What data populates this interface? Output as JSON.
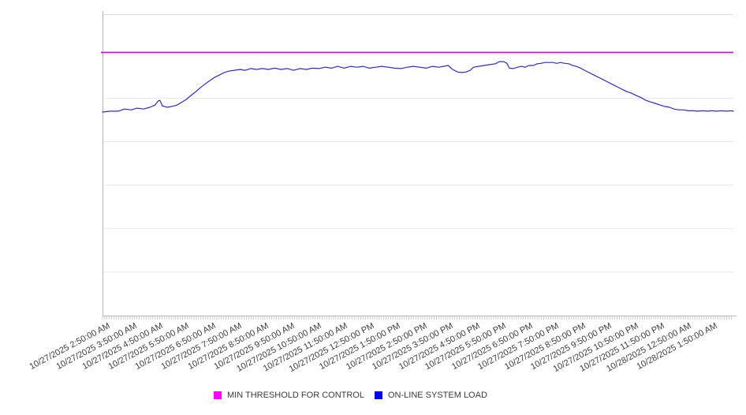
{
  "chart_data": {
    "type": "line",
    "title": "",
    "x_axis": {
      "tick_labels": [
        "10/27/2025 2:50:00 AM",
        "10/27/2025 3:50:00 AM",
        "10/27/2025 4:50:00 AM",
        "10/27/2025 5:50:00 AM",
        "10/27/2025 6:50:00 AM",
        "10/27/2025 7:50:00 AM",
        "10/27/2025 8:50:00 AM",
        "10/27/2025 9:50:00 AM",
        "10/27/2025 10:50:00 AM",
        "10/27/2025 11:50:00 AM",
        "10/27/2025 12:50:00 PM",
        "10/27/2025 1:50:00 PM",
        "10/27/2025 2:50:00 PM",
        "10/27/2025 3:50:00 PM",
        "10/27/2025 4:50:00 PM",
        "10/27/2025 5:50:00 PM",
        "10/27/2025 6:50:00 PM",
        "10/27/2025 7:50:00 PM",
        "10/27/2025 8:50:00 PM",
        "10/27/2025 9:50:00 PM",
        "10/27/2025 10:50:00 PM",
        "10/27/2025 11:50:00 PM",
        "10/28/2025 12:50:00 AM",
        "10/28/2025 1:50:00 AM"
      ],
      "label_rotation_deg": -28,
      "minor_ticks": "dense per-sample tick marks along the axis line"
    },
    "y_axis": {
      "tick_labels": [],
      "units": "unlabeled; values expressed in horizontal-gridline divisions above the x-axis",
      "grid": "horizontal gridlines only"
    },
    "ylim": [
      0,
      6.93
    ],
    "legend_position": "bottom-center",
    "series": [
      {
        "name": "MIN THRESHOLD FOR CONTROL",
        "type": "threshold-horizontal-line",
        "color": "#c716c7",
        "legend_swatch_color": "#ff00ff",
        "value": 6.05
      },
      {
        "name": "ON-LINE SYSTEM LOAD",
        "type": "line",
        "color": "#2e2eb8",
        "legend_swatch_color": "#0000ff",
        "points": [
          [
            0.0,
            4.68
          ],
          [
            0.013,
            4.7
          ],
          [
            0.025,
            4.7
          ],
          [
            0.035,
            4.75
          ],
          [
            0.045,
            4.73
          ],
          [
            0.055,
            4.77
          ],
          [
            0.065,
            4.75
          ],
          [
            0.075,
            4.79
          ],
          [
            0.083,
            4.84
          ],
          [
            0.088,
            4.93
          ],
          [
            0.091,
            4.95
          ],
          [
            0.095,
            4.82
          ],
          [
            0.103,
            4.79
          ],
          [
            0.11,
            4.81
          ],
          [
            0.118,
            4.84
          ],
          [
            0.125,
            4.9
          ],
          [
            0.133,
            4.97
          ],
          [
            0.14,
            5.06
          ],
          [
            0.148,
            5.15
          ],
          [
            0.155,
            5.24
          ],
          [
            0.163,
            5.33
          ],
          [
            0.17,
            5.4
          ],
          [
            0.178,
            5.48
          ],
          [
            0.185,
            5.53
          ],
          [
            0.193,
            5.59
          ],
          [
            0.2,
            5.62
          ],
          [
            0.209,
            5.64
          ],
          [
            0.218,
            5.66
          ],
          [
            0.226,
            5.64
          ],
          [
            0.235,
            5.68
          ],
          [
            0.244,
            5.66
          ],
          [
            0.253,
            5.68
          ],
          [
            0.263,
            5.66
          ],
          [
            0.273,
            5.69
          ],
          [
            0.283,
            5.66
          ],
          [
            0.293,
            5.68
          ],
          [
            0.303,
            5.64
          ],
          [
            0.313,
            5.68
          ],
          [
            0.323,
            5.66
          ],
          [
            0.333,
            5.69
          ],
          [
            0.343,
            5.68
          ],
          [
            0.353,
            5.71
          ],
          [
            0.363,
            5.69
          ],
          [
            0.373,
            5.73
          ],
          [
            0.383,
            5.69
          ],
          [
            0.393,
            5.73
          ],
          [
            0.403,
            5.71
          ],
          [
            0.413,
            5.73
          ],
          [
            0.423,
            5.69
          ],
          [
            0.433,
            5.71
          ],
          [
            0.443,
            5.73
          ],
          [
            0.453,
            5.71
          ],
          [
            0.463,
            5.69
          ],
          [
            0.473,
            5.68
          ],
          [
            0.483,
            5.71
          ],
          [
            0.493,
            5.73
          ],
          [
            0.503,
            5.71
          ],
          [
            0.513,
            5.69
          ],
          [
            0.523,
            5.73
          ],
          [
            0.533,
            5.71
          ],
          [
            0.54,
            5.73
          ],
          [
            0.548,
            5.75
          ],
          [
            0.555,
            5.66
          ],
          [
            0.563,
            5.6
          ],
          [
            0.57,
            5.59
          ],
          [
            0.576,
            5.6
          ],
          [
            0.583,
            5.64
          ],
          [
            0.588,
            5.71
          ],
          [
            0.596,
            5.73
          ],
          [
            0.605,
            5.75
          ],
          [
            0.614,
            5.77
          ],
          [
            0.623,
            5.79
          ],
          [
            0.629,
            5.84
          ],
          [
            0.636,
            5.84
          ],
          [
            0.641,
            5.8
          ],
          [
            0.645,
            5.69
          ],
          [
            0.651,
            5.68
          ],
          [
            0.658,
            5.71
          ],
          [
            0.664,
            5.73
          ],
          [
            0.67,
            5.71
          ],
          [
            0.676,
            5.75
          ],
          [
            0.683,
            5.75
          ],
          [
            0.689,
            5.79
          ],
          [
            0.695,
            5.8
          ],
          [
            0.701,
            5.82
          ],
          [
            0.708,
            5.82
          ],
          [
            0.714,
            5.82
          ],
          [
            0.72,
            5.8
          ],
          [
            0.726,
            5.82
          ],
          [
            0.733,
            5.8
          ],
          [
            0.739,
            5.79
          ],
          [
            0.745,
            5.75
          ],
          [
            0.751,
            5.73
          ],
          [
            0.758,
            5.69
          ],
          [
            0.764,
            5.64
          ],
          [
            0.771,
            5.59
          ],
          [
            0.779,
            5.53
          ],
          [
            0.786,
            5.48
          ],
          [
            0.794,
            5.42
          ],
          [
            0.801,
            5.37
          ],
          [
            0.809,
            5.31
          ],
          [
            0.816,
            5.26
          ],
          [
            0.824,
            5.2
          ],
          [
            0.831,
            5.15
          ],
          [
            0.839,
            5.11
          ],
          [
            0.846,
            5.06
          ],
          [
            0.854,
            5.01
          ],
          [
            0.861,
            4.95
          ],
          [
            0.869,
            4.91
          ],
          [
            0.876,
            4.88
          ],
          [
            0.884,
            4.84
          ],
          [
            0.891,
            4.81
          ],
          [
            0.899,
            4.79
          ],
          [
            0.906,
            4.75
          ],
          [
            0.914,
            4.73
          ],
          [
            0.921,
            4.73
          ],
          [
            0.929,
            4.71
          ],
          [
            0.936,
            4.71
          ],
          [
            0.944,
            4.7
          ],
          [
            0.951,
            4.71
          ],
          [
            0.959,
            4.7
          ],
          [
            0.966,
            4.71
          ],
          [
            0.974,
            4.7
          ],
          [
            0.981,
            4.71
          ],
          [
            0.989,
            4.7
          ],
          [
            0.996,
            4.71
          ],
          [
            1.0,
            4.7
          ]
        ]
      }
    ]
  },
  "colors": {
    "gridline": "#e9e9e9",
    "plot_border_top": "#dcdcdc",
    "axis_line": "#b3b6b8",
    "minor_tick": "#b9bcbe",
    "label_text": "#3c3c3c"
  }
}
